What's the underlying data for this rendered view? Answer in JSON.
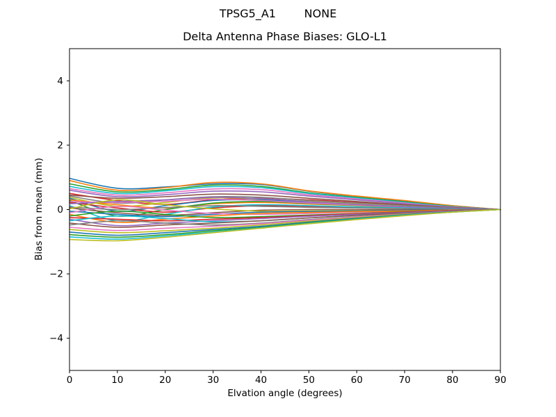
{
  "figure": {
    "suptitle": "TPSG5_A1        NONE",
    "background": "#ffffff"
  },
  "chart_data": {
    "type": "line",
    "title": "Delta Antenna Phase Biases: GLO-L1",
    "xlabel": "Elvation angle (degrees)",
    "ylabel": "Bias from mean (mm)",
    "xlim": [
      0,
      90
    ],
    "ylim": [
      -5,
      5
    ],
    "xticks": [
      0,
      10,
      20,
      30,
      40,
      50,
      60,
      70,
      80,
      90
    ],
    "yticks": [
      -4,
      -2,
      0,
      2,
      4
    ],
    "ytick_labels": [
      "−4",
      "−2",
      "0",
      "2",
      "4"
    ],
    "grid": false,
    "legend": "none",
    "axis_color": "#000000",
    "line_width": 1.6,
    "x": [
      0,
      10,
      20,
      30,
      40,
      50,
      60,
      70,
      80,
      90
    ],
    "series": [
      {
        "color": "#1f77b4",
        "y": [
          0.97,
          0.66,
          0.7,
          0.8,
          0.78,
          0.57,
          0.41,
          0.27,
          0.12,
          0
        ]
      },
      {
        "color": "#ff7f0e",
        "y": [
          0.9,
          0.6,
          0.68,
          0.84,
          0.8,
          0.58,
          0.42,
          0.28,
          0.12,
          0
        ]
      },
      {
        "color": "#2ca02c",
        "y": [
          0.8,
          0.55,
          0.62,
          0.76,
          0.72,
          0.52,
          0.38,
          0.24,
          0.1,
          0
        ]
      },
      {
        "color": "#17becf",
        "y": [
          0.72,
          0.5,
          0.58,
          0.71,
          0.68,
          0.5,
          0.36,
          0.22,
          0.09,
          0
        ]
      },
      {
        "color": "#e377c2",
        "y": [
          0.65,
          0.45,
          0.52,
          0.64,
          0.62,
          0.46,
          0.33,
          0.2,
          0.08,
          0
        ]
      },
      {
        "color": "#9467bd",
        "y": [
          0.6,
          0.4,
          0.46,
          0.57,
          0.55,
          0.42,
          0.3,
          0.18,
          0.07,
          0
        ]
      },
      {
        "color": "#d62728",
        "y": [
          0.5,
          0.28,
          0.16,
          0.3,
          0.35,
          0.3,
          0.22,
          0.14,
          0.06,
          0
        ]
      },
      {
        "color": "#8c564b",
        "y": [
          0.45,
          0.35,
          0.4,
          0.48,
          0.45,
          0.35,
          0.25,
          0.15,
          0.06,
          0
        ]
      },
      {
        "color": "#7f7f7f",
        "y": [
          0.42,
          0.2,
          0.3,
          0.4,
          0.38,
          0.28,
          0.2,
          0.12,
          0.05,
          0
        ]
      },
      {
        "color": "#bcbd22",
        "y": [
          0.38,
          0.1,
          0.22,
          0.36,
          0.33,
          0.25,
          0.17,
          0.1,
          0.04,
          0
        ]
      },
      {
        "color": "#1f77b4",
        "y": [
          0.35,
          -0.05,
          0.12,
          0.28,
          0.3,
          0.22,
          0.15,
          0.09,
          0.04,
          0
        ]
      },
      {
        "color": "#ff7f0e",
        "y": [
          0.3,
          0.15,
          0.05,
          0.18,
          0.22,
          0.17,
          0.12,
          0.07,
          0.03,
          0
        ]
      },
      {
        "color": "#2ca02c",
        "y": [
          0.28,
          -0.2,
          0.0,
          0.2,
          0.25,
          0.19,
          0.13,
          0.08,
          0.03,
          0
        ]
      },
      {
        "color": "#e377c2",
        "y": [
          0.25,
          0.22,
          0.26,
          0.32,
          0.28,
          0.2,
          0.14,
          0.08,
          0.03,
          0
        ]
      },
      {
        "color": "#d62728",
        "y": [
          0.22,
          0.05,
          -0.08,
          0.05,
          0.12,
          0.1,
          0.07,
          0.04,
          0.02,
          0
        ]
      },
      {
        "color": "#9467bd",
        "y": [
          0.18,
          0.25,
          0.3,
          0.38,
          0.34,
          0.24,
          0.16,
          0.09,
          0.04,
          0
        ]
      },
      {
        "color": "#17becf",
        "y": [
          0.12,
          -0.35,
          -0.15,
          0.08,
          0.15,
          0.12,
          0.08,
          0.05,
          0.02,
          0
        ]
      },
      {
        "color": "#7f7f7f",
        "y": [
          0.08,
          0.0,
          0.06,
          0.12,
          0.1,
          0.07,
          0.05,
          0.03,
          0.01,
          0
        ]
      },
      {
        "color": "#8c564b",
        "y": [
          0.05,
          -0.1,
          -0.18,
          -0.1,
          -0.02,
          0.0,
          0.0,
          0.0,
          0.0,
          0
        ]
      },
      {
        "color": "#bcbd22",
        "y": [
          0.02,
          0.3,
          0.15,
          0.02,
          -0.05,
          -0.04,
          -0.03,
          -0.02,
          -0.01,
          0
        ]
      },
      {
        "color": "#1f77b4",
        "y": [
          -0.05,
          -0.15,
          -0.22,
          -0.15,
          -0.08,
          -0.06,
          -0.04,
          -0.02,
          -0.01,
          0
        ]
      },
      {
        "color": "#e377c2",
        "y": [
          -0.1,
          0.1,
          -0.02,
          -0.12,
          -0.15,
          -0.12,
          -0.08,
          -0.05,
          -0.02,
          0
        ]
      },
      {
        "color": "#ff7f0e",
        "y": [
          -0.15,
          -0.4,
          -0.3,
          -0.2,
          -0.12,
          -0.09,
          -0.06,
          -0.04,
          -0.02,
          0
        ]
      },
      {
        "color": "#2ca02c",
        "y": [
          -0.2,
          -0.05,
          -0.15,
          -0.25,
          -0.22,
          -0.17,
          -0.12,
          -0.07,
          -0.03,
          0
        ]
      },
      {
        "color": "#d62728",
        "y": [
          -0.25,
          -0.3,
          -0.35,
          -0.3,
          -0.25,
          -0.19,
          -0.13,
          -0.08,
          -0.03,
          0
        ]
      },
      {
        "color": "#9467bd",
        "y": [
          -0.3,
          -0.5,
          -0.42,
          -0.35,
          -0.28,
          -0.21,
          -0.15,
          -0.09,
          -0.04,
          0
        ]
      },
      {
        "color": "#17becf",
        "y": [
          -0.35,
          -0.2,
          -0.28,
          -0.38,
          -0.35,
          -0.26,
          -0.18,
          -0.11,
          -0.05,
          0
        ]
      },
      {
        "color": "#8c564b",
        "y": [
          -0.42,
          -0.55,
          -0.48,
          -0.42,
          -0.35,
          -0.26,
          -0.18,
          -0.11,
          -0.05,
          0
        ]
      },
      {
        "color": "#7f7f7f",
        "y": [
          -0.48,
          -0.35,
          -0.42,
          -0.48,
          -0.42,
          -0.31,
          -0.22,
          -0.13,
          -0.06,
          0
        ]
      },
      {
        "color": "#e377c2",
        "y": [
          -0.55,
          -0.65,
          -0.58,
          -0.52,
          -0.44,
          -0.33,
          -0.23,
          -0.14,
          -0.06,
          0
        ]
      },
      {
        "color": "#bcbd22",
        "y": [
          -0.62,
          -0.72,
          -0.66,
          -0.58,
          -0.48,
          -0.36,
          -0.25,
          -0.15,
          -0.07,
          0
        ]
      },
      {
        "color": "#1f77b4",
        "y": [
          -0.7,
          -0.8,
          -0.72,
          -0.62,
          -0.52,
          -0.39,
          -0.27,
          -0.16,
          -0.07,
          0
        ]
      },
      {
        "color": "#2ca02c",
        "y": [
          -0.78,
          -0.86,
          -0.78,
          -0.66,
          -0.55,
          -0.41,
          -0.29,
          -0.17,
          -0.08,
          0
        ]
      },
      {
        "color": "#17becf",
        "y": [
          -0.85,
          -0.92,
          -0.82,
          -0.7,
          -0.57,
          -0.43,
          -0.3,
          -0.18,
          -0.08,
          0
        ]
      },
      {
        "color": "#bcbd22",
        "y": [
          -0.93,
          -0.97,
          -0.86,
          -0.72,
          -0.58,
          -0.44,
          -0.31,
          -0.19,
          -0.08,
          0
        ]
      }
    ]
  }
}
